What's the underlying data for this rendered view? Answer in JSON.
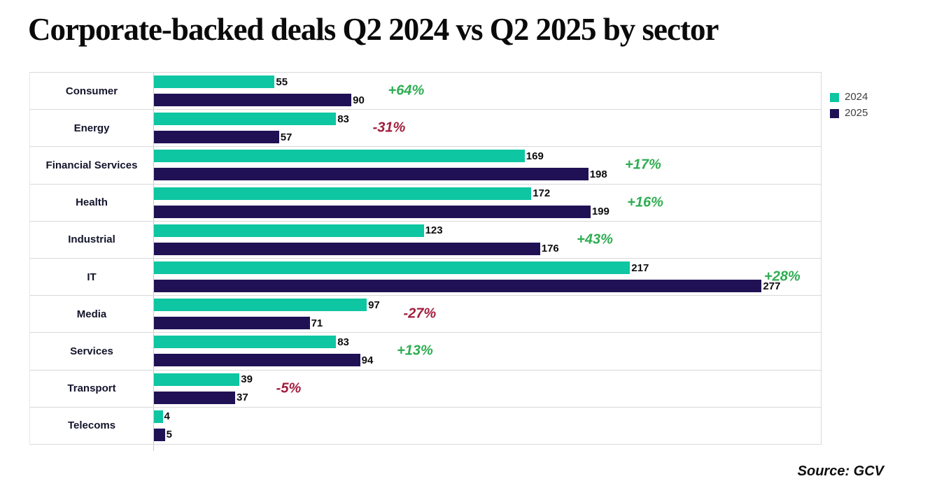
{
  "title": "Corporate-backed deals Q2 2024 vs Q2 2025 by sector",
  "source_note": "Source: GCV",
  "colors": {
    "series_2024": "#0ec6a1",
    "series_2025": "#201155",
    "positive_change": "#2fad52",
    "negative_change": "#a21d3c",
    "gridline": "#d9d9d9",
    "value_label": "#0d0d0d",
    "category_label": "#13142b",
    "legend_text": "#3f3f3f"
  },
  "legend": [
    {
      "label": "2024",
      "color": "#0ec6a1"
    },
    {
      "label": "2025",
      "color": "#201155"
    }
  ],
  "chart_data": {
    "type": "bar",
    "orientation": "horizontal",
    "title": "Corporate-backed deals Q2 2024 vs Q2 2025 by sector",
    "xlabel": "",
    "ylabel": "",
    "xlim": [
      0,
      304
    ],
    "grid": "row-separators",
    "legend_position": "right-outside-top",
    "categories": [
      "Consumer",
      "Energy",
      "Financial Services",
      "Health",
      "Industrial",
      "IT",
      "Media",
      "Services",
      "Transport",
      "Telecoms"
    ],
    "series": [
      {
        "name": "2024",
        "color": "#0ec6a1",
        "values": [
          55,
          83,
          169,
          172,
          123,
          217,
          97,
          83,
          39,
          4
        ]
      },
      {
        "name": "2025",
        "color": "#201155",
        "values": [
          90,
          57,
          198,
          199,
          176,
          277,
          71,
          94,
          37,
          5
        ]
      }
    ],
    "change_labels": [
      "+64%",
      "-31%",
      "+17%",
      "+16%",
      "+43%",
      "+28%",
      "-27%",
      "+13%",
      "-5%",
      ""
    ],
    "annotations_note": "change labels shown to the right of each category's longer bar"
  }
}
